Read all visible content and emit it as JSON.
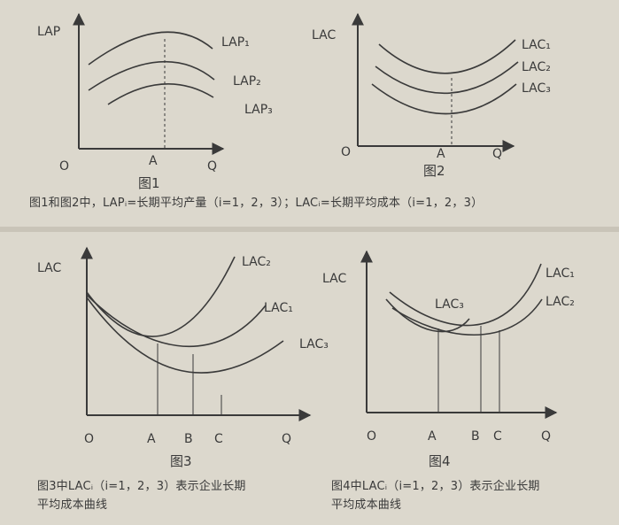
{
  "figure1": {
    "y_axis_label": "LAP",
    "origin": "O",
    "x_axis_label": "Q",
    "tick_label": "A",
    "curves": [
      "LAP₁",
      "LAP₂",
      "LAP₃"
    ],
    "title": "图1"
  },
  "figure2": {
    "y_axis_label": "LAC",
    "origin": "O",
    "x_axis_label": "Q",
    "tick_label": "A",
    "curves": [
      "LAC₁",
      "LAC₂",
      "LAC₃"
    ],
    "title": "图2"
  },
  "caption_top": "图1和图2中，LAPᵢ=长期平均产量（i=1，2，3）；LACᵢ=长期平均成本（i=1，2，3）",
  "figure3": {
    "y_axis_label": "LAC",
    "origin": "O",
    "x_axis_label": "Q",
    "tick_labels": [
      "A",
      "B",
      "C"
    ],
    "curves": [
      "LAC₂",
      "LAC₁",
      "LAC₃"
    ],
    "title": "图3"
  },
  "figure4": {
    "y_axis_label": "LAC",
    "origin": "O",
    "x_axis_label": "Q",
    "tick_labels": [
      "A",
      "B",
      "C"
    ],
    "curves": [
      "LAC₁",
      "LAC₂",
      "LAC₃"
    ],
    "title": "图4"
  },
  "caption_fig3_line1": "图3中LACᵢ（i=1，2，3）表示企业长期",
  "caption_fig3_line2": "平均成本曲线",
  "caption_fig4_line1": "图4中LACᵢ（i=1，2，3）表示企业长期",
  "caption_fig4_line2": "平均成本曲线",
  "colors": {
    "background": "#dcd8cd",
    "ink": "#3a3a3a",
    "panel_divider": "#c9c4b8"
  }
}
